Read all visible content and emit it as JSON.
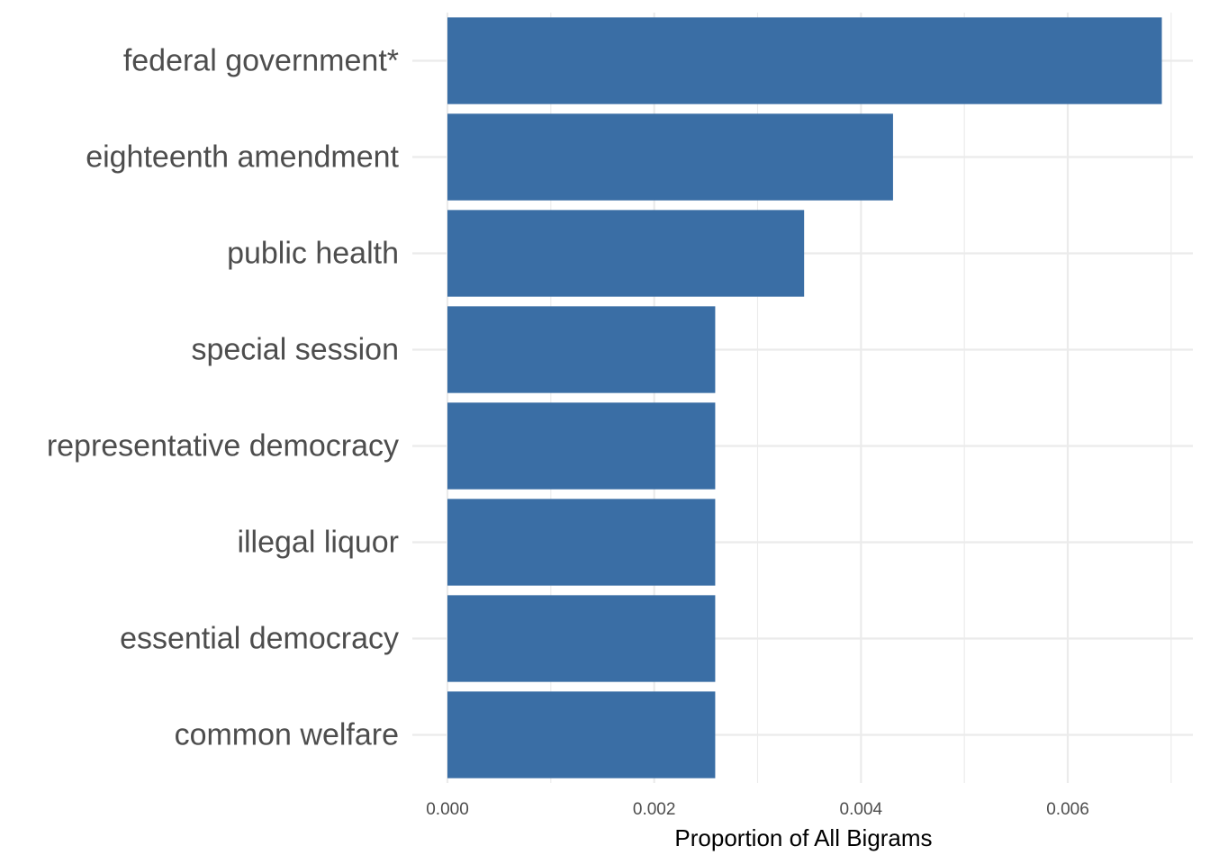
{
  "chart_data": {
    "type": "bar",
    "orientation": "horizontal",
    "categories": [
      "federal government*",
      "eighteenth amendment",
      "public health",
      "special session",
      "representative democracy",
      "illegal liquor",
      "essential democracy",
      "common welfare"
    ],
    "values": [
      0.00691,
      0.00431,
      0.00345,
      0.00259,
      0.00259,
      0.00259,
      0.00259,
      0.00259
    ],
    "title": "",
    "xlabel": "Proportion of All Bigrams",
    "ylabel": "",
    "xlim": [
      0,
      0.00725
    ],
    "xticks": [
      0,
      0.002,
      0.004,
      0.006
    ],
    "xtick_labels": [
      "0.000",
      "0.002",
      "0.004",
      "0.006"
    ],
    "grid": true,
    "legend": "none",
    "bar_color": "#3a6ea5"
  }
}
